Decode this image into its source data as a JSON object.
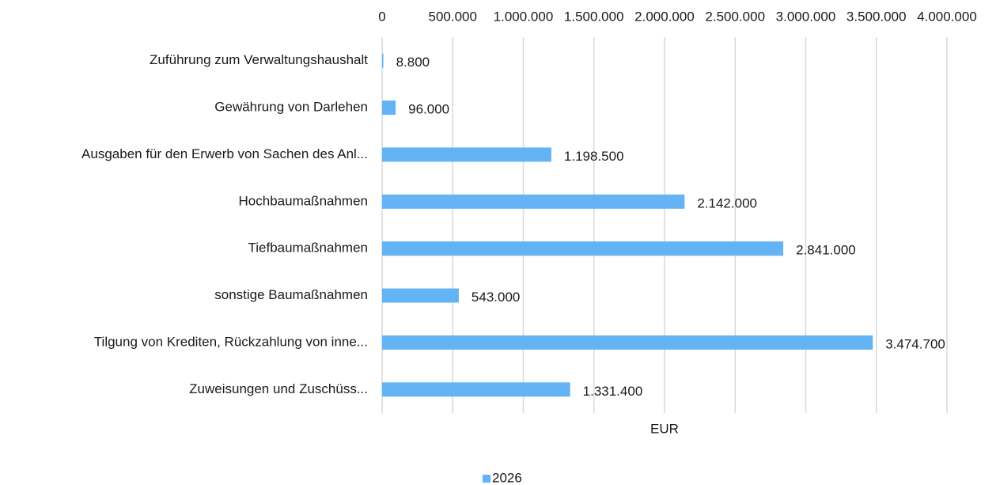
{
  "chart_data": {
    "type": "bar",
    "orientation": "horizontal",
    "categories": [
      "Zuführung zum Verwaltungshaushalt",
      "Gewährung von Darlehen",
      "Ausgaben für den Erwerb von Sachen des Anl...",
      "Hochbaumaßnahmen",
      "Tiefbaumaßnahmen",
      "sonstige Baumaßnahmen",
      "Tilgung von Krediten, Rückzahlung von inne...",
      "Zuweisungen und Zuschüss..."
    ],
    "series": [
      {
        "name": "2026",
        "color": "#63b3f5",
        "values": [
          8800,
          96000,
          1198500,
          2142000,
          2841000,
          543000,
          3474700,
          1331400
        ],
        "value_labels": [
          "8.800",
          "96.000",
          "1.198.500",
          "2.142.000",
          "2.841.000",
          "543.000",
          "3.474.700",
          "1.331.400"
        ]
      }
    ],
    "xlabel": "EUR",
    "xlim": [
      0,
      4000000
    ],
    "xticks": [
      0,
      {
        "value": 500000,
        "label": "500.000"
      },
      {
        "value": 1000000,
        "label": "1.000.000"
      },
      {
        "value": 1500000,
        "label": "1.500.000"
      },
      {
        "value": 2000000,
        "label": "2.000.000"
      },
      {
        "value": 2500000,
        "label": "2.500.000"
      },
      {
        "value": 3000000,
        "label": "3.000.000"
      },
      {
        "value": 3500000,
        "label": "3.500.000"
      },
      {
        "value": 4000000,
        "label": "4.000.000"
      }
    ],
    "grid": true,
    "legend": "bottom"
  }
}
